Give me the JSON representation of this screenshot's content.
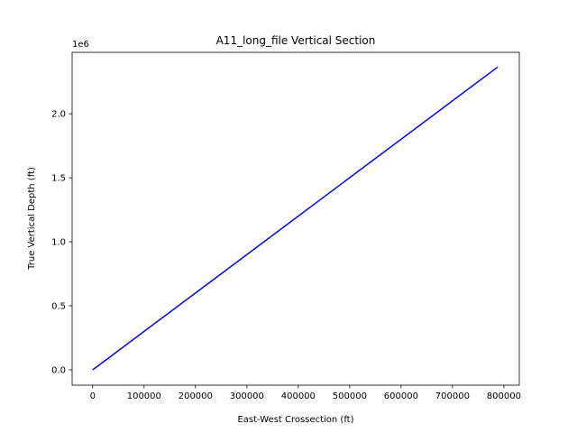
{
  "chart_data": {
    "type": "line",
    "title": "A11_long_file Vertical Section",
    "xlabel": "East-West Crossection (ft)",
    "ylabel": "True Vertical Depth (ft)",
    "y_offset_label": "1e6",
    "xlim": [
      -40000,
      830000
    ],
    "ylim": [
      -120000,
      2480000
    ],
    "xticks": [
      0,
      100000,
      200000,
      300000,
      400000,
      500000,
      600000,
      700000,
      800000
    ],
    "xtick_labels": [
      "0",
      "100000",
      "200000",
      "300000",
      "400000",
      "500000",
      "600000",
      "700000",
      "800000"
    ],
    "yticks": [
      0,
      500000,
      1000000,
      1500000,
      2000000
    ],
    "ytick_labels": [
      "0.0",
      "0.5",
      "1.0",
      "1.5",
      "2.0"
    ],
    "grid": false,
    "series": [
      {
        "color": "#0000ff",
        "x": [
          0,
          788000
        ],
        "y": [
          0,
          2365000
        ]
      }
    ]
  }
}
